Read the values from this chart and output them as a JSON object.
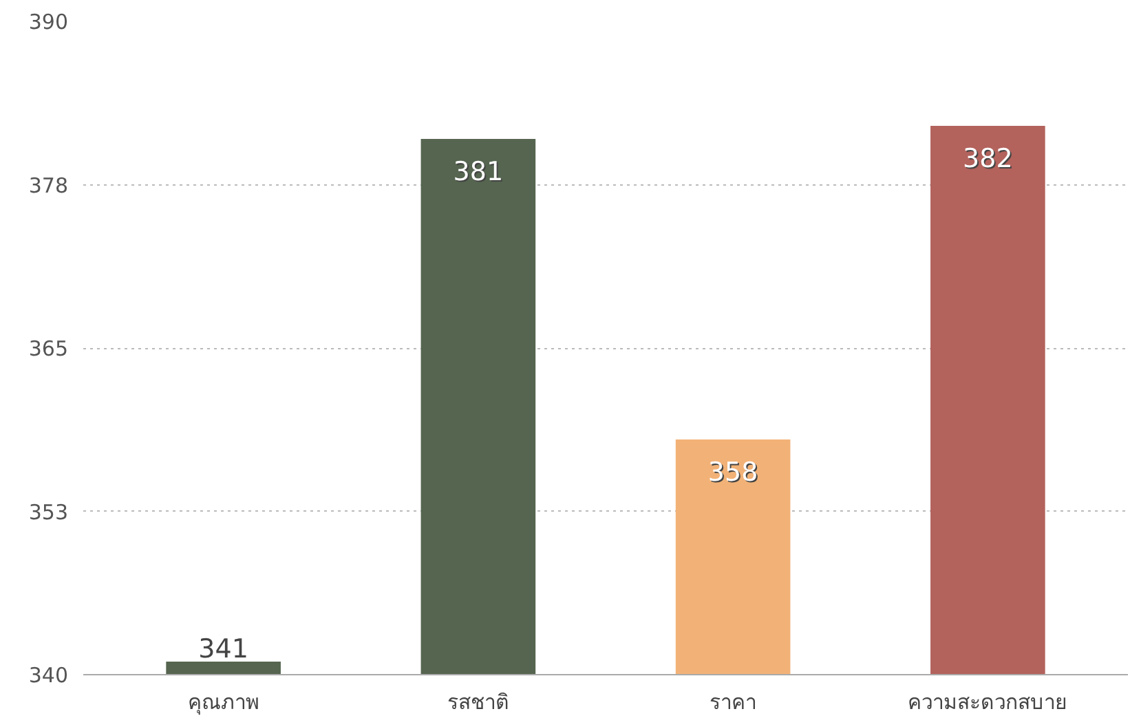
{
  "chart_data": {
    "type": "bar",
    "categories": [
      "คุณภาพ",
      "รสชาติ",
      "ราคา",
      "ความสะดวกสบาย"
    ],
    "values": [
      341,
      381,
      358,
      382
    ],
    "colors": [
      "#55654f",
      "#55654f",
      "#f2b277",
      "#b3625c"
    ],
    "ylim": [
      340,
      390
    ],
    "yticks": [
      340,
      {
        "value": 352.5,
        "label": "353"
      },
      365,
      {
        "value": 377.5,
        "label": "378"
      },
      390
    ],
    "grid": "y",
    "data_labels": true
  }
}
